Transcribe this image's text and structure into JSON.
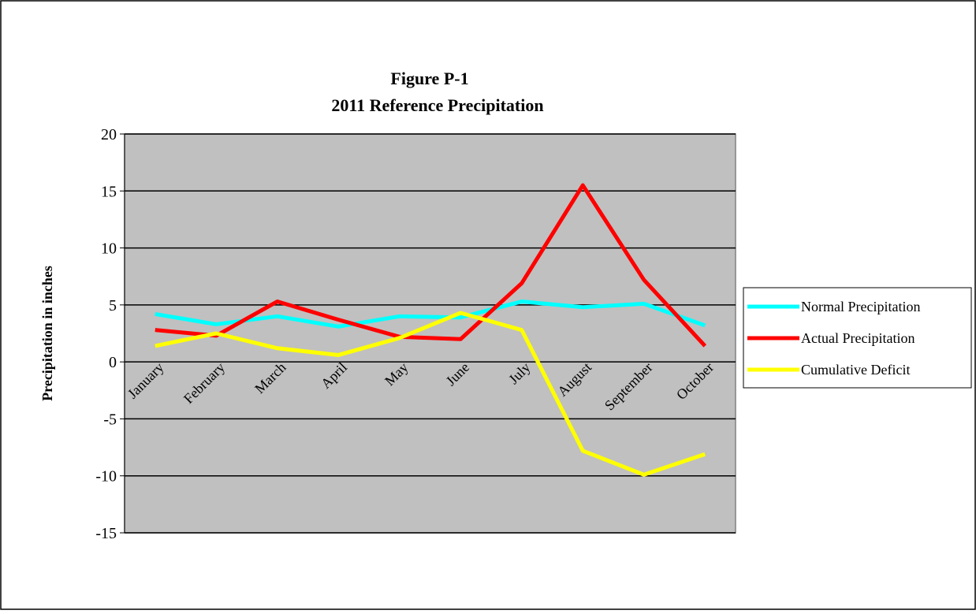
{
  "chart_data": {
    "type": "line",
    "title": "Figure P-1",
    "subtitle": "2011 Reference Precipitation",
    "y_label": "Precipitation  in inches",
    "categories": [
      "January",
      "February",
      "March",
      "April",
      "May",
      "June",
      "July",
      "August",
      "September",
      "October"
    ],
    "series": [
      {
        "name": "Normal Precipitation",
        "color": "#00ffff",
        "values": [
          4.2,
          3.3,
          4.0,
          3.1,
          4.0,
          3.9,
          5.3,
          4.8,
          5.1,
          3.2
        ]
      },
      {
        "name": "Actual Precipitation",
        "color": "#ff0000",
        "values": [
          2.8,
          2.3,
          5.3,
          3.7,
          2.2,
          2.0,
          6.9,
          15.5,
          7.2,
          1.4
        ]
      },
      {
        "name": "Cumulative Deficit",
        "color": "#ffff00",
        "values": [
          1.4,
          2.5,
          1.2,
          0.6,
          2.1,
          4.3,
          2.8,
          -7.8,
          -9.9,
          -8.1
        ]
      }
    ],
    "ylim": [
      -15,
      20
    ],
    "yticks": [
      -15,
      -10,
      -5,
      0,
      5,
      10,
      15,
      20
    ],
    "grid": true,
    "legend": "right",
    "plot_background": "#c0c0c0"
  }
}
